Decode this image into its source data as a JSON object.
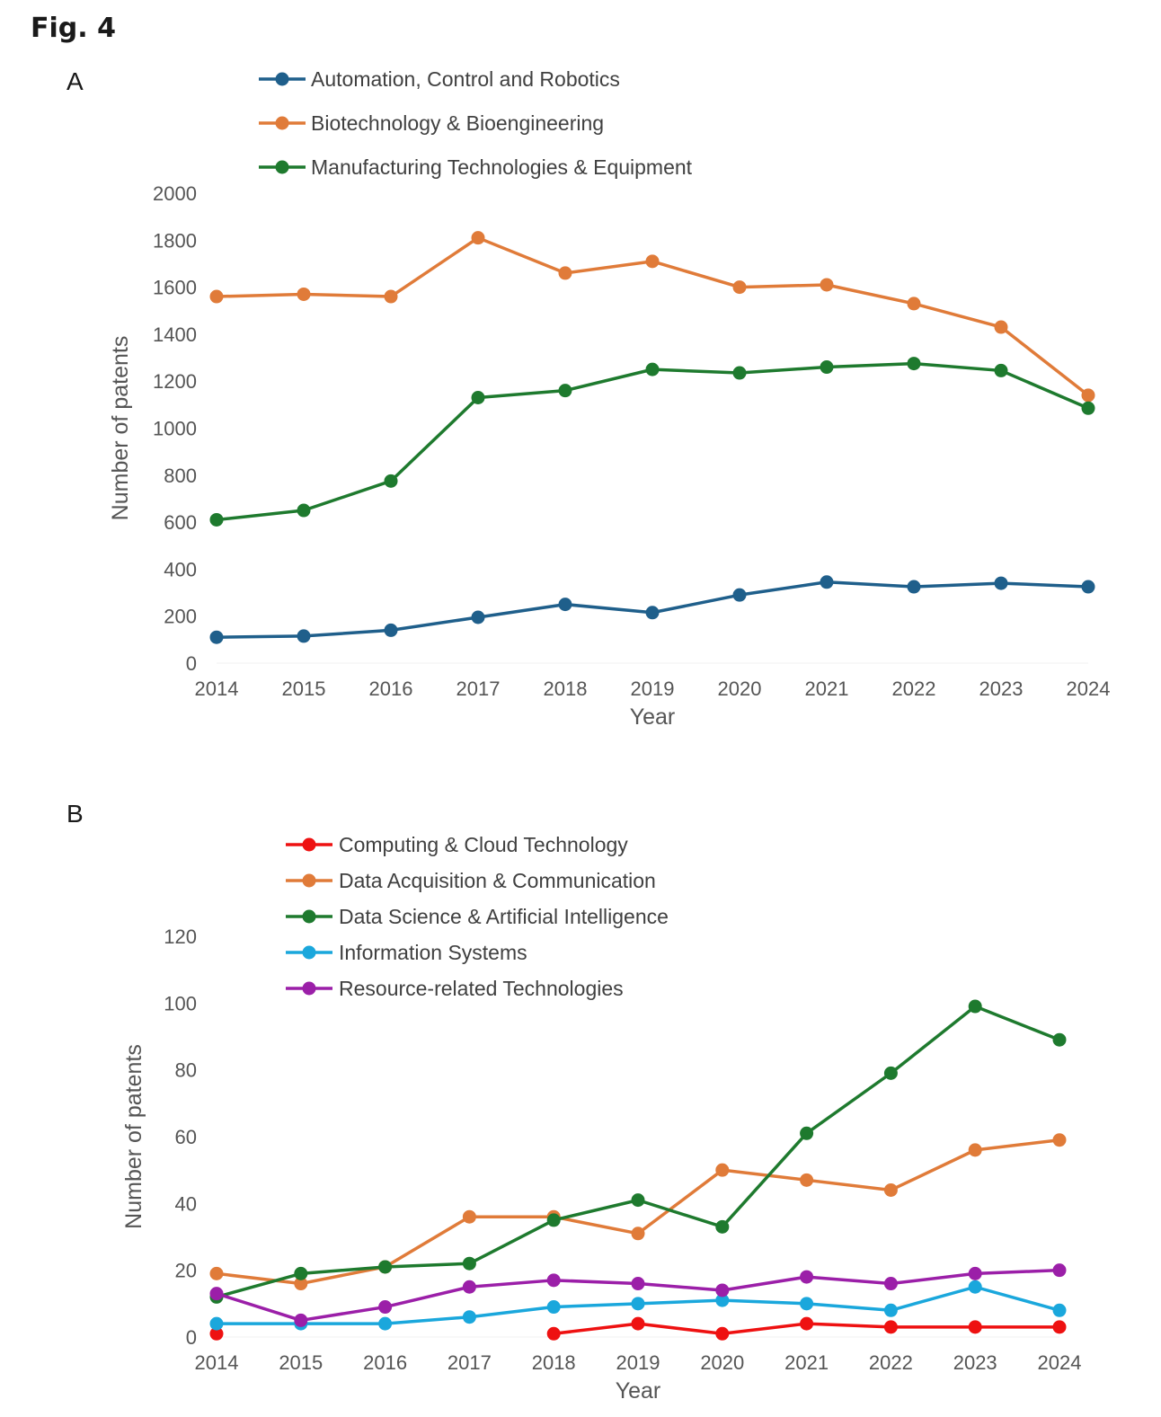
{
  "figure_title": "Fig. 4",
  "chart_data": [
    {
      "panel": "A",
      "type": "line",
      "x": [
        "2014",
        "2015",
        "2016",
        "2017",
        "2018",
        "2019",
        "2020",
        "2021",
        "2022",
        "2023",
        "2024"
      ],
      "xlabel": "Year",
      "ylabel": "Number of patents",
      "ylim": [
        0,
        2000
      ],
      "yticks": [
        0,
        200,
        400,
        600,
        800,
        1000,
        1200,
        1400,
        1600,
        1800,
        2000
      ],
      "grid": false,
      "legend_position": "top",
      "series": [
        {
          "name": "Automation, Control and Robotics",
          "color": "#1f5f8b",
          "values": [
            110,
            115,
            140,
            195,
            250,
            215,
            290,
            345,
            325,
            340,
            325
          ]
        },
        {
          "name": "Biotechnology & Bioengineering",
          "color": "#e07b39",
          "values": [
            1560,
            1570,
            1560,
            1810,
            1660,
            1710,
            1600,
            1610,
            1530,
            1430,
            1140
          ]
        },
        {
          "name": "Manufacturing Technologies & Equipment",
          "color": "#1e7a2e",
          "values": [
            610,
            650,
            775,
            1130,
            1160,
            1250,
            1235,
            1260,
            1275,
            1245,
            1085
          ]
        }
      ]
    },
    {
      "panel": "B",
      "type": "line",
      "x": [
        "2014",
        "2015",
        "2016",
        "2017",
        "2018",
        "2019",
        "2020",
        "2021",
        "2022",
        "2023",
        "2024"
      ],
      "xlabel": "Year",
      "ylabel": "Number of patents",
      "ylim": [
        0,
        120
      ],
      "yticks": [
        0,
        20,
        40,
        60,
        80,
        100,
        120
      ],
      "grid": false,
      "legend_position": "top",
      "series": [
        {
          "name": "Computing & Cloud Technology",
          "color": "#ee1111",
          "values": [
            1,
            null,
            null,
            null,
            1,
            4,
            1,
            4,
            3,
            3,
            3
          ]
        },
        {
          "name": "Data Acquisition & Communication",
          "color": "#e07b39",
          "values": [
            19,
            16,
            21,
            36,
            36,
            31,
            50,
            47,
            44,
            56,
            59
          ]
        },
        {
          "name": "Data Science & Artificial Intelligence",
          "color": "#1e7a2e",
          "values": [
            12,
            19,
            21,
            22,
            35,
            41,
            33,
            61,
            79,
            99,
            89
          ]
        },
        {
          "name": "Information Systems",
          "color": "#1aa7dc",
          "values": [
            4,
            4,
            4,
            6,
            9,
            10,
            11,
            10,
            8,
            15,
            8
          ]
        },
        {
          "name": "Resource-related Technologies",
          "color": "#9b1fa8",
          "values": [
            13,
            5,
            9,
            15,
            17,
            16,
            14,
            18,
            16,
            19,
            20
          ]
        }
      ]
    }
  ]
}
